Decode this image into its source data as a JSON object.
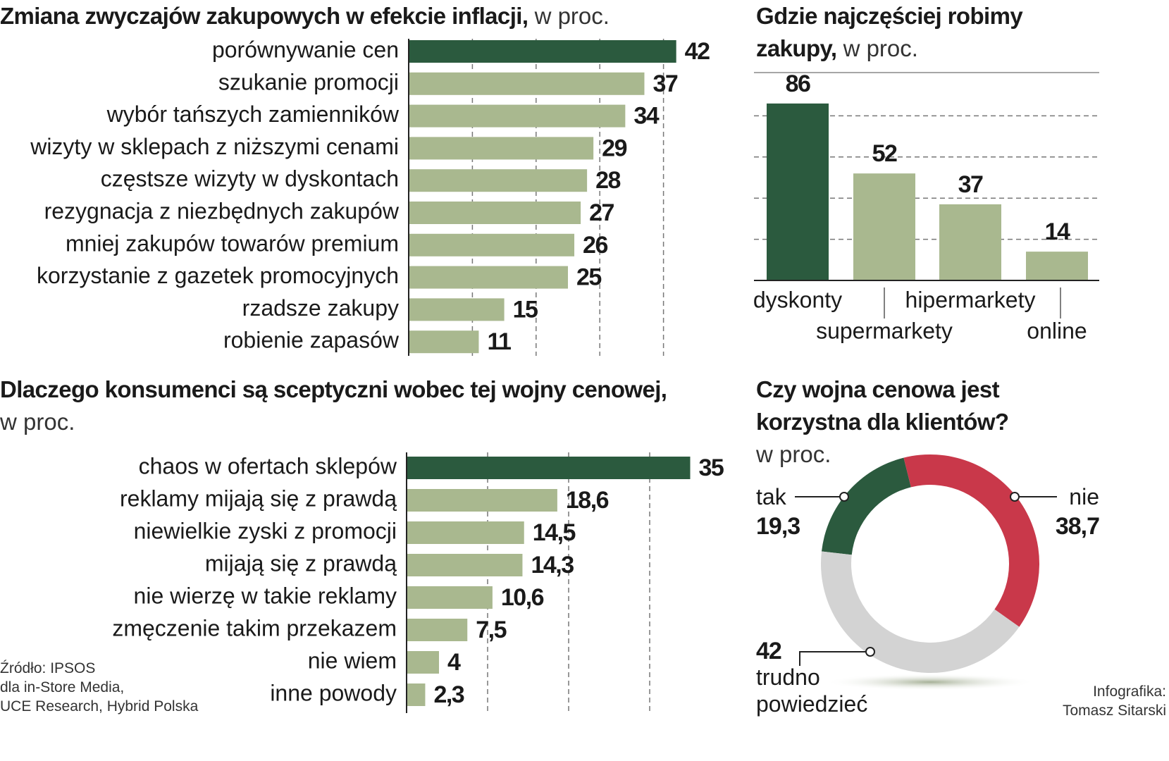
{
  "chart_data": [
    {
      "type": "hbar",
      "title": "Zmiana zwyczajów zakupowych w efekcie inflacji,",
      "subtitle": "w proc.",
      "categories": [
        "porównywanie cen",
        "szukanie promocji",
        "wybór tańszych zamienników",
        "wizyty w sklepach z niższymi cenami",
        "częstsze wizyty w dyskontach",
        "rezygnacja z niezbędnych zakupów",
        "mniej zakupów towarów premium",
        "korzystanie z gazetek promocyjnych",
        "rzadsze zakupy",
        "robienie zapasów"
      ],
      "values": [
        42,
        37,
        34,
        29,
        28,
        27,
        26,
        25,
        15,
        11
      ],
      "colors": [
        "#2b5a3e",
        "#a9b88f",
        "#a9b88f",
        "#a9b88f",
        "#a9b88f",
        "#a9b88f",
        "#a9b88f",
        "#a9b88f",
        "#a9b88f",
        "#a9b88f"
      ],
      "xlim": [
        0,
        50
      ],
      "xticks": [
        10,
        20,
        30,
        40
      ],
      "grid": true
    },
    {
      "type": "bar",
      "title": "Gdzie najczęściej robimy zakupy,",
      "subtitle": "w proc.",
      "categories": [
        "dyskonty",
        "supermarkety",
        "hipermarkety",
        "online"
      ],
      "values": [
        86,
        52,
        37,
        14
      ],
      "colors": [
        "#2b5a3e",
        "#a9b88f",
        "#a9b88f",
        "#a9b88f"
      ],
      "ylim": [
        0,
        100
      ],
      "yticks": [
        20,
        40,
        60,
        80
      ],
      "grid": true
    },
    {
      "type": "hbar",
      "title": "Dlaczego konsumenci są sceptyczni wobec tej wojny cenowej,",
      "subtitle": "w proc.",
      "categories": [
        "chaos w ofertach sklepów",
        "reklamy mijają się z prawdą",
        "niewielkie zyski z promocji",
        "mijają się z prawdą",
        "nie wierzę w takie reklamy",
        "zmęczenie takim przekazem",
        "nie wiem",
        "inne powody"
      ],
      "values": [
        35,
        18.6,
        14.5,
        14.3,
        10.6,
        7.5,
        4,
        2.3
      ],
      "value_labels": [
        "35",
        "18,6",
        "14,5",
        "14,3",
        "10,6",
        "7,5",
        "4",
        "2,3"
      ],
      "colors": [
        "#2b5a3e",
        "#a9b88f",
        "#a9b88f",
        "#a9b88f",
        "#a9b88f",
        "#a9b88f",
        "#a9b88f",
        "#a9b88f"
      ],
      "xlim": [
        0,
        40
      ],
      "xticks": [
        10,
        20,
        30
      ],
      "grid": true
    },
    {
      "type": "donut",
      "title": "Czy wojna cenowa jest korzystna dla klientów?",
      "subtitle": "w proc.",
      "categories": [
        "tak",
        "nie",
        "trudno powiedzieć"
      ],
      "values": [
        19.3,
        38.7,
        42
      ],
      "value_labels": [
        "19,3",
        "38,7",
        "42"
      ],
      "colors": [
        "#2b5a3e",
        "#c9384a",
        "#d3d3d3"
      ]
    }
  ],
  "source": [
    "Źródło: IPSOS",
    "dla in-Store Media,",
    "UCE Research, Hybrid Polska"
  ],
  "credit": [
    "Infografika:",
    "Tomasz Sitarski"
  ]
}
